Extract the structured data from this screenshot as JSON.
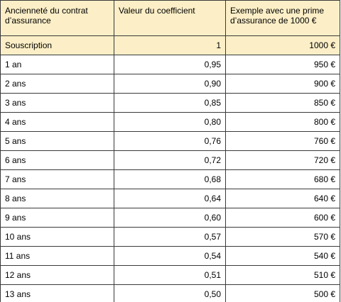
{
  "table": {
    "headers": [
      "Ancienneté du contrat d’assurance",
      "Valeur du coefficient",
      "Exemple avec une prime d’assurance de 1000 €"
    ],
    "rows": [
      [
        "Souscription",
        "1",
        "1000 €"
      ],
      [
        "1 an",
        "0,95",
        "950 €"
      ],
      [
        "2 ans",
        "0,90",
        "900 €"
      ],
      [
        "3 ans",
        "0,85",
        "850 €"
      ],
      [
        "4 ans",
        "0,80",
        "800 €"
      ],
      [
        "5 ans",
        "0,76",
        "760 €"
      ],
      [
        "6 ans",
        "0,72",
        "720 €"
      ],
      [
        "7 ans",
        "0,68",
        "680 €"
      ],
      [
        "8 ans",
        "0,64",
        "640 €"
      ],
      [
        "9 ans",
        "0,60",
        "600 €"
      ],
      [
        "10 ans",
        "0,57",
        "570 €"
      ],
      [
        "11 ans",
        "0,54",
        "540 €"
      ],
      [
        "12 ans",
        "0,51",
        "510 €"
      ],
      [
        "13 ans",
        "0,50",
        "500 €"
      ]
    ]
  },
  "colors": {
    "header_fill": "#fcefc7",
    "border": "#3a3a3a"
  }
}
